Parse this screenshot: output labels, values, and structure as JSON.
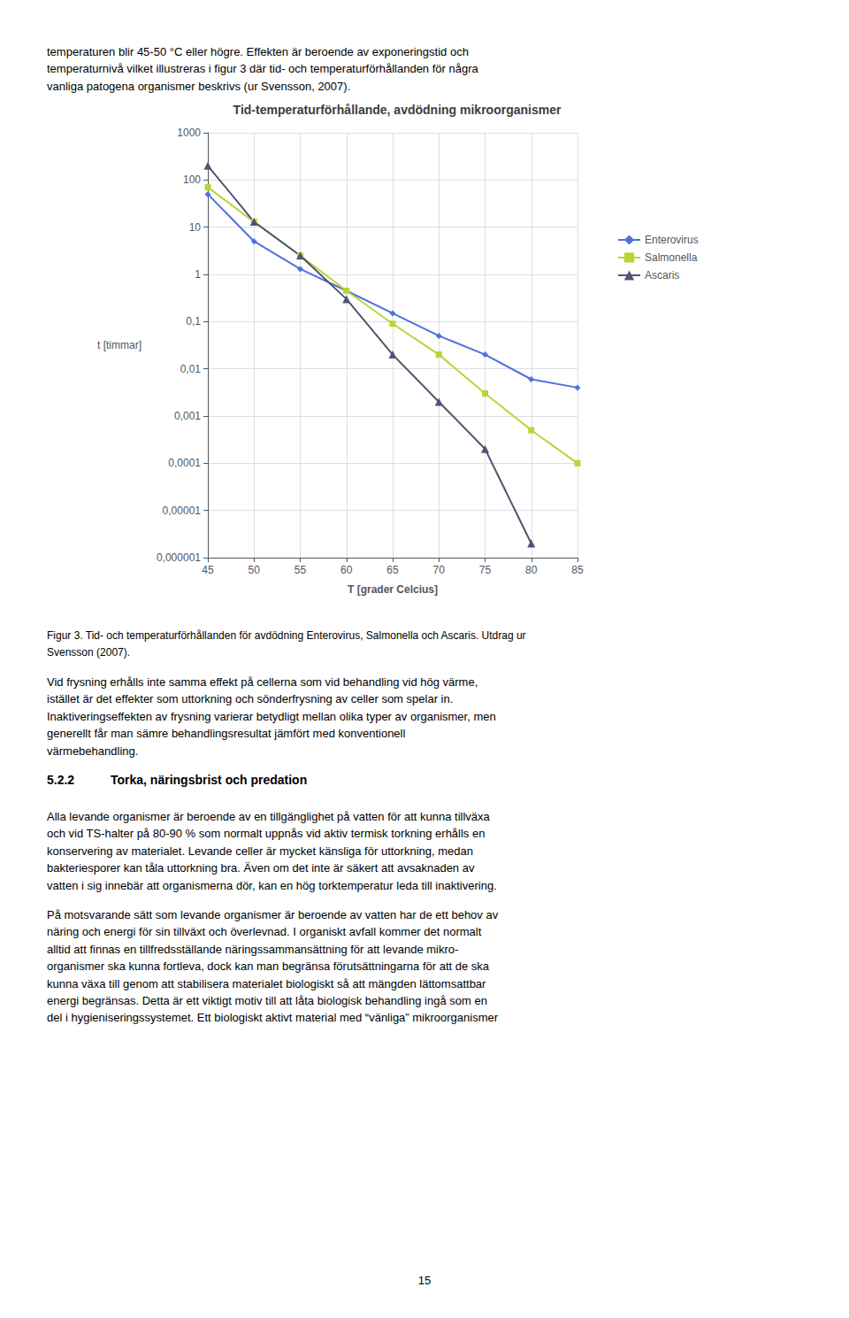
{
  "chart_data": {
    "type": "line",
    "title": "Tid-temperaturförhållande, avdödning mikroorganismer",
    "x_label": "T [grader Celcius]",
    "y_label": "t [timmar]",
    "log": "y",
    "grid": true,
    "legend": "right",
    "xlim": [
      45,
      85
    ],
    "xticks": [
      45,
      50,
      55,
      60,
      65,
      70,
      75,
      80,
      85
    ],
    "ylim": [
      1e-06,
      1000
    ],
    "yticks": [
      {
        "value": 1e-06,
        "label": "0,000001"
      },
      {
        "value": 1e-05,
        "label": "0,00001"
      },
      {
        "value": 0.0001,
        "label": "0,0001"
      },
      {
        "value": 0.001,
        "label": "0,001"
      },
      {
        "value": 0.01,
        "label": "0,01"
      },
      {
        "value": 0.1,
        "label": "0,1"
      },
      1,
      10,
      100,
      1000
    ],
    "series": [
      {
        "name": "Enterovirus",
        "marker": "diamond",
        "x": [
          45,
          50,
          55,
          60,
          65,
          70,
          75,
          80,
          85
        ],
        "values": [
          50,
          5,
          1.3,
          0.45,
          0.15,
          0.05,
          0.02,
          0.006,
          0.004
        ]
      },
      {
        "name": "Salmonella",
        "marker": "square",
        "x": [
          45,
          50,
          55,
          60,
          65,
          70,
          75,
          80,
          85
        ],
        "values": [
          70,
          13,
          2.5,
          0.45,
          0.09,
          0.02,
          0.003,
          0.0005,
          0.0001
        ]
      },
      {
        "name": "Ascaris",
        "marker": "triangle",
        "x": [
          45,
          50,
          55,
          60,
          65,
          70,
          75,
          80
        ],
        "values": [
          200,
          13,
          2.5,
          0.3,
          0.02,
          0.002,
          0.0002,
          2e-06
        ]
      }
    ],
    "annotations": [
      [
        "temperaturen blir 45-50 °C eller högre. Effekten är beroende av exponeringstid och",
        "temperaturnivå vilket illustreras i figur 3 där tid- och temperaturförhållanden för några",
        "vanliga patogena organismer beskrivs (ur Svensson, 2007)."
      ],
      [
        "Figur 3. Tid- och temperaturförhållanden för avdödning Enterovirus, Salmonella och Ascaris. Utdrag ur",
        "Svensson (2007)."
      ],
      [
        "Vid frysning erhålls inte samma effekt på cellerna som vid behandling vid hög värme,",
        "istället är det effekter som uttorkning och sönderfrysning av celler som spelar in.",
        "Inaktiveringseffekten av frysning varierar betydligt mellan olika typer av organismer, men",
        "generellt får man sämre behandlingsresultat jämfört med konventionell",
        "värmebehandling."
      ],
      [
        "5.2.2",
        "Torka, näringsbrist och predation"
      ],
      [
        "Alla levande organismer är beroende av en tillgänglighet på vatten för att kunna tillväxa",
        "och vid TS-halter på 80-90 % som normalt uppnås vid aktiv termisk torkning erhålls en",
        "konservering av materialet. Levande celler är mycket känsliga för uttorkning, medan",
        "bakteriesporer kan tåla uttorkning bra. Även om det inte är säkert att avsaknaden av",
        "vatten i sig innebär att organismerna dör, kan en hög torktemperatur leda till inaktivering."
      ],
      [
        "På motsvarande sätt som levande organismer är beroende av vatten har de ett behov av",
        "näring och energi för sin tillväxt och överlevnad. I organiskt avfall kommer det normalt",
        "alltid att finnas en tillfredsställande näringssammansättning för att levande mikro-",
        "organismer ska kunna fortleva, dock kan man begränsa förutsättningarna för att de ska",
        "kunna växa till genom att stabilisera materialet biologiskt så att mängden lättomsattbar",
        "energi begränsas. Detta är ett viktigt motiv till att låta biologisk behandling ingå som en",
        "del i hygieniseringssystemet. Ett biologiskt aktivt material med “vänliga” mikroorganismer"
      ],
      [
        "15"
      ]
    ]
  }
}
